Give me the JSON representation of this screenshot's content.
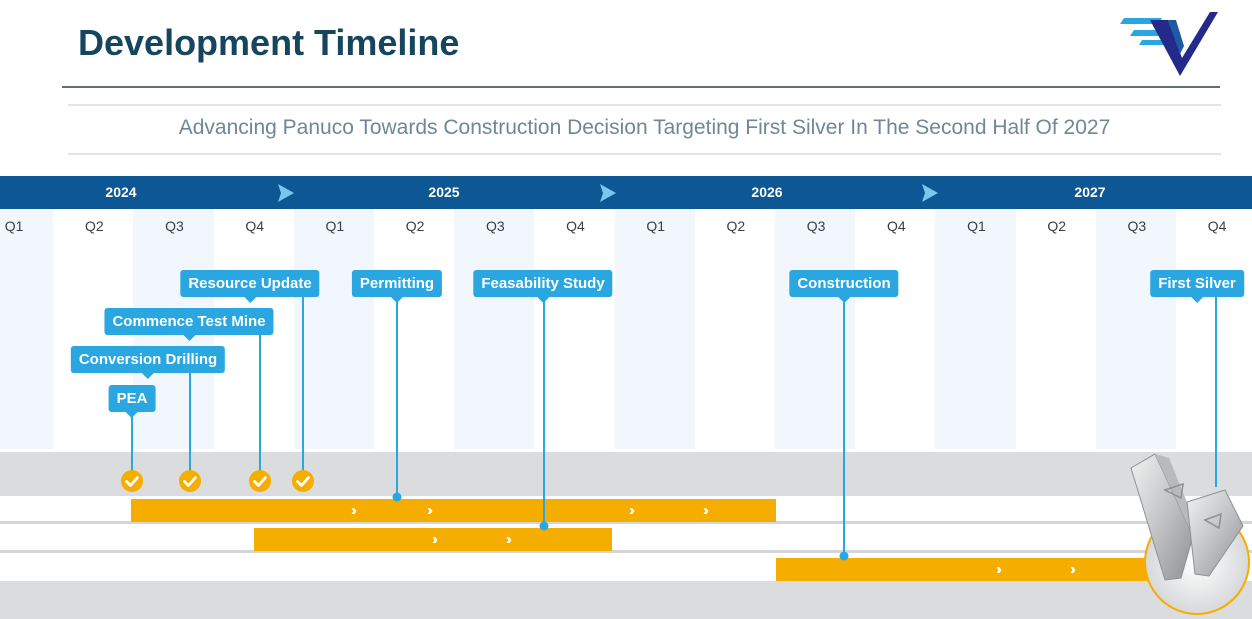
{
  "header": {
    "title": "Development Timeline",
    "subtitle": "Advancing Panuco Towards Construction Decision Targeting First Silver In The Second Half Of 2027",
    "logo": "checkmark-wings-logo"
  },
  "timeline": {
    "years": [
      "2024",
      "2025",
      "2026",
      "2027"
    ],
    "quarters": [
      "Q1",
      "Q2",
      "Q3",
      "Q4",
      "Q1",
      "Q2",
      "Q3",
      "Q4",
      "Q1",
      "Q2",
      "Q3",
      "Q4",
      "Q1",
      "Q2",
      "Q3",
      "Q4"
    ],
    "milestones": [
      {
        "label": "PEA",
        "status": "complete"
      },
      {
        "label": "Conversion Drilling",
        "status": "complete"
      },
      {
        "label": "Commence Test Mine",
        "status": "complete"
      },
      {
        "label": "Resource Update",
        "status": "complete"
      },
      {
        "label": "Permitting",
        "status": "in-progress"
      },
      {
        "label": "Feasability Study",
        "status": "in-progress"
      },
      {
        "label": "Construction",
        "status": "planned"
      },
      {
        "label": "First Silver",
        "status": "planned"
      }
    ]
  },
  "colors": {
    "title": "#16465f",
    "year_bar": "#0d5794",
    "callout": "#2aa6e0",
    "bar": "#f5ad00",
    "check": "#f5ad00",
    "subtitle": "#6f8797"
  },
  "icons": {
    "year_marker": "arrow-right-icon",
    "milestone_complete": "check-circle-icon",
    "bar_chevron": "double-chevron-right-icon",
    "silver_image": "silver-bars-image"
  }
}
